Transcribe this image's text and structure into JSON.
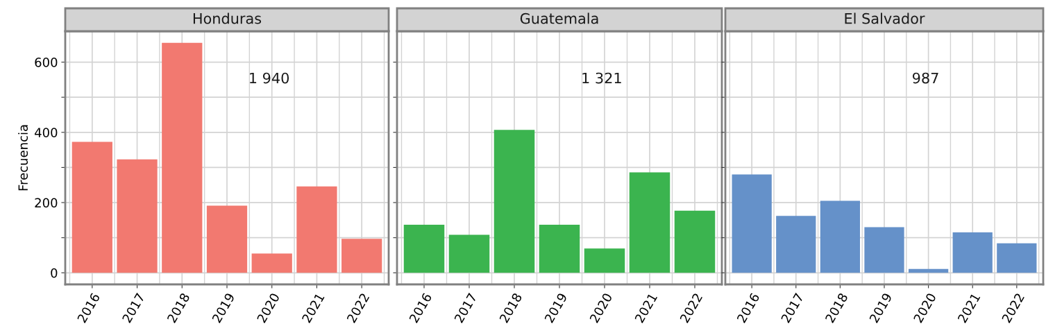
{
  "chart_data": [
    {
      "type": "bar",
      "title": "Honduras",
      "ylabel": "Frecuencia",
      "categories": [
        "2016",
        "2017",
        "2018",
        "2019",
        "2020",
        "2021",
        "2022"
      ],
      "values": [
        373,
        323,
        655,
        191,
        55,
        246,
        97
      ],
      "color": "#f27970",
      "ylim": [
        -33,
        688
      ],
      "yticks": [
        0,
        {
          "value": 100,
          "label": null
        },
        200,
        {
          "value": 300,
          "label": null
        },
        400,
        {
          "value": 500,
          "label": null
        },
        600
      ],
      "grid": true,
      "annotations": [
        "1 940"
      ]
    },
    {
      "type": "bar",
      "title": "Guatemala",
      "categories": [
        "2016",
        "2017",
        "2018",
        "2019",
        "2020",
        "2021",
        "2022"
      ],
      "values": [
        137,
        108,
        407,
        137,
        69,
        286,
        177
      ],
      "color": "#3bb44f",
      "ylim": [
        -33,
        688
      ],
      "yticks": [
        0,
        {
          "value": 100,
          "label": null
        },
        200,
        {
          "value": 300,
          "label": null
        },
        400,
        {
          "value": 500,
          "label": null
        },
        600
      ],
      "grid": true,
      "tick_labels": "x",
      "annotations": [
        "1 321"
      ]
    },
    {
      "type": "bar",
      "title": "El Salvador",
      "categories": [
        "2016",
        "2017",
        "2018",
        "2019",
        "2020",
        "2021",
        "2022"
      ],
      "values": [
        280,
        162,
        205,
        130,
        11,
        115,
        84
      ],
      "color": "#6591c9",
      "ylim": [
        -33,
        688
      ],
      "yticks": [
        0,
        {
          "value": 100,
          "label": null
        },
        200,
        {
          "value": 300,
          "label": null
        },
        400,
        {
          "value": 500,
          "label": null
        },
        600
      ],
      "grid": true,
      "tick_labels": "x",
      "annotations": [
        "987"
      ]
    }
  ]
}
